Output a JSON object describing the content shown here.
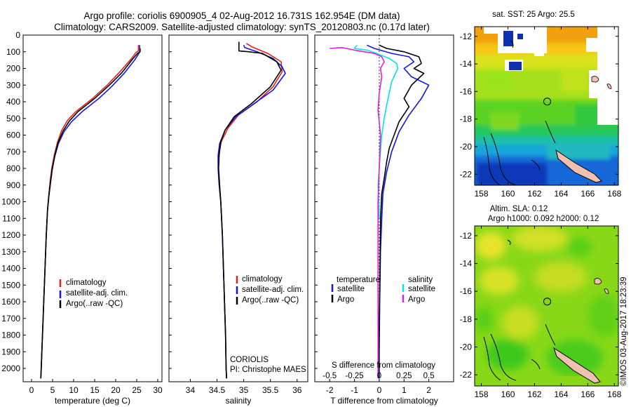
{
  "figure": {
    "title_line1": "Argo profile: coriolis 6900905_4 02-Aug-2012 16.731S 162.954E (DM data)",
    "title_line2": "Climatology: CARS2009. Satellite-adjusted climatology: synTS_20120803.nc (0.17d later)",
    "stamp": "©IMOS 03-Aug-2017 18:23:39",
    "colors": {
      "climatology": "#e8201c",
      "satellite": "#1515e0",
      "argo": "#000000",
      "sat_salinity": "#00e5e5",
      "argo_salinity": "#e020e0"
    }
  },
  "chart_data": [
    {
      "id": "temperature",
      "type": "line",
      "xlabel": "temperature (deg C)",
      "ylabel": "",
      "xlim": [
        -2,
        31
      ],
      "ylim": [
        2080,
        0
      ],
      "xticks": [
        0,
        5,
        10,
        15,
        20,
        25,
        30
      ],
      "yticks": [
        0,
        100,
        200,
        300,
        400,
        500,
        600,
        700,
        800,
        900,
        1000,
        1100,
        1200,
        1300,
        1400,
        1500,
        1600,
        1700,
        1800,
        1900,
        2000
      ],
      "legend": [
        "climatology",
        "satellite-adj. clim.",
        "Argo(..raw -QC)"
      ],
      "series": [
        {
          "name": "climatology",
          "color": "#e8201c",
          "points": [
            [
              25.4,
              60
            ],
            [
              25.4,
              95
            ],
            [
              24.8,
              105
            ],
            [
              23.8,
              140
            ],
            [
              21.0,
              220
            ],
            [
              18.0,
              300
            ],
            [
              14.5,
              380
            ],
            [
              10.5,
              460
            ],
            [
              8.6,
              510
            ],
            [
              7.2,
              570
            ],
            [
              6.2,
              640
            ],
            [
              5.4,
              720
            ],
            [
              4.8,
              800
            ],
            [
              4.4,
              880
            ],
            [
              4.1,
              960
            ],
            [
              3.8,
              1050
            ],
            [
              3.5,
              1200
            ],
            [
              3.2,
              1400
            ],
            [
              2.9,
              1600
            ],
            [
              2.6,
              1800
            ],
            [
              2.3,
              2000
            ],
            [
              2.2,
              2060
            ]
          ]
        },
        {
          "name": "satellite-adj. clim.",
          "color": "#1515e0",
          "points": [
            [
              25.7,
              60
            ],
            [
              25.7,
              100
            ],
            [
              25.4,
              115
            ],
            [
              24.5,
              150
            ],
            [
              22.0,
              230
            ],
            [
              19.0,
              310
            ],
            [
              16.0,
              380
            ],
            [
              12.0,
              460
            ],
            [
              9.5,
              520
            ],
            [
              7.7,
              580
            ],
            [
              6.4,
              650
            ],
            [
              5.5,
              730
            ],
            [
              4.9,
              810
            ],
            [
              4.5,
              890
            ],
            [
              4.1,
              970
            ],
            [
              3.8,
              1050
            ],
            [
              3.5,
              1200
            ],
            [
              3.2,
              1400
            ],
            [
              2.9,
              1600
            ],
            [
              2.6,
              1800
            ],
            [
              2.3,
              2000
            ],
            [
              2.2,
              2060
            ]
          ]
        },
        {
          "name": "Argo(..raw -QC)",
          "color": "#000000",
          "points": [
            [
              25.8,
              80
            ],
            [
              25.8,
              100
            ],
            [
              25.2,
              110
            ],
            [
              24.0,
              145
            ],
            [
              21.5,
              225
            ],
            [
              18.5,
              300
            ],
            [
              15.0,
              380
            ],
            [
              11.0,
              460
            ],
            [
              9.0,
              515
            ],
            [
              7.5,
              575
            ],
            [
              6.3,
              645
            ],
            [
              5.5,
              725
            ],
            [
              4.9,
              805
            ],
            [
              4.5,
              885
            ],
            [
              4.1,
              965
            ],
            [
              3.8,
              1050
            ],
            [
              3.5,
              1200
            ],
            [
              3.2,
              1400
            ],
            [
              2.9,
              1600
            ],
            [
              2.6,
              1800
            ],
            [
              2.3,
              2000
            ],
            [
              2.2,
              2060
            ]
          ]
        }
      ]
    },
    {
      "id": "salinity",
      "type": "line",
      "xlabel": "salinity",
      "xlim": [
        33.6,
        36.2
      ],
      "ylim": [
        2080,
        0
      ],
      "xticks": [
        34,
        34.5,
        35,
        35.5,
        36
      ],
      "legend": [
        "climatology",
        "satellite-adj. clim.",
        "Argo(..raw -QC)"
      ],
      "annotation_line1": "CORIOLIS",
      "annotation_line2": "PI: Christophe MAES",
      "series": [
        {
          "name": "climatology",
          "color": "#e8201c",
          "points": [
            [
              35.05,
              50
            ],
            [
              35.15,
              70
            ],
            [
              35.45,
              110
            ],
            [
              35.7,
              160
            ],
            [
              35.72,
              220
            ],
            [
              35.55,
              310
            ],
            [
              35.25,
              400
            ],
            [
              34.9,
              480
            ],
            [
              34.7,
              560
            ],
            [
              34.58,
              640
            ],
            [
              34.53,
              720
            ],
            [
              34.52,
              800
            ],
            [
              34.54,
              900
            ],
            [
              34.57,
              1000
            ],
            [
              34.6,
              1200
            ],
            [
              34.62,
              1400
            ],
            [
              34.64,
              1600
            ],
            [
              34.66,
              1800
            ],
            [
              34.67,
              2000
            ],
            [
              34.68,
              2060
            ]
          ]
        },
        {
          "name": "satellite-adj. clim.",
          "color": "#1515e0",
          "points": [
            [
              35.0,
              60
            ],
            [
              35.02,
              75
            ],
            [
              35.25,
              100
            ],
            [
              35.55,
              140
            ],
            [
              35.72,
              190
            ],
            [
              35.78,
              230
            ],
            [
              35.55,
              330
            ],
            [
              35.2,
              410
            ],
            [
              34.85,
              490
            ],
            [
              34.65,
              570
            ],
            [
              34.55,
              650
            ],
            [
              34.52,
              720
            ],
            [
              34.52,
              800
            ],
            [
              34.54,
              900
            ],
            [
              34.57,
              1000
            ],
            [
              34.6,
              1200
            ],
            [
              34.62,
              1400
            ],
            [
              34.64,
              1600
            ],
            [
              34.66,
              1800
            ],
            [
              34.67,
              2000
            ],
            [
              34.68,
              2060
            ]
          ]
        },
        {
          "name": "Argo(..raw -QC)",
          "color": "#000000",
          "points": [
            [
              34.91,
              40
            ],
            [
              34.91,
              95
            ],
            [
              35.1,
              100
            ],
            [
              35.35,
              110
            ],
            [
              35.62,
              160
            ],
            [
              35.7,
              210
            ],
            [
              35.5,
              310
            ],
            [
              35.15,
              410
            ],
            [
              34.82,
              490
            ],
            [
              34.65,
              570
            ],
            [
              34.57,
              640
            ],
            [
              34.54,
              720
            ],
            [
              34.53,
              800
            ],
            [
              34.55,
              900
            ],
            [
              34.57,
              1000
            ],
            [
              34.6,
              1200
            ],
            [
              34.62,
              1400
            ],
            [
              34.64,
              1600
            ],
            [
              34.66,
              1800
            ],
            [
              34.67,
              2000
            ],
            [
              34.68,
              2060
            ]
          ]
        }
      ]
    },
    {
      "id": "difference",
      "type": "line",
      "xlabel": "T difference from climatology",
      "xlabel_top": "S difference from climatology",
      "xlim_T": [
        -2.6,
        3.0
      ],
      "xticks_T": [
        -2,
        -1,
        0,
        1,
        2
      ],
      "xticks_S": [
        -0.5,
        -0.25,
        0,
        0.25,
        0.5
      ],
      "ylim": [
        2080,
        0
      ],
      "legend_header_T": "temperature",
      "legend_header_S": "salinity",
      "legend_T": [
        "satellite",
        "Argo"
      ],
      "legend_S": [
        "satellite",
        "Argo"
      ],
      "series": [
        {
          "name": "T satellite",
          "color": "#1515e0",
          "points": [
            [
              -0.5,
              60
            ],
            [
              -0.2,
              80
            ],
            [
              0.5,
              110
            ],
            [
              1.2,
              130
            ],
            [
              1.4,
              160
            ],
            [
              1.0,
              200
            ],
            [
              1.3,
              250
            ],
            [
              2.0,
              300
            ],
            [
              1.7,
              380
            ],
            [
              1.2,
              480
            ],
            [
              0.8,
              580
            ],
            [
              0.5,
              700
            ],
            [
              0.3,
              820
            ],
            [
              0.15,
              950
            ],
            [
              0.1,
              1100
            ],
            [
              0.05,
              1300
            ],
            [
              0.02,
              1600
            ],
            [
              0.0,
              1900
            ],
            [
              0.0,
              2060
            ]
          ]
        },
        {
          "name": "T Argo",
          "color": "#000000",
          "points": [
            [
              0.0,
              60
            ],
            [
              0.3,
              80
            ],
            [
              1.0,
              100
            ],
            [
              1.6,
              130
            ],
            [
              1.7,
              170
            ],
            [
              1.4,
              200
            ],
            [
              1.8,
              230
            ],
            [
              1.3,
              300
            ],
            [
              1.0,
              380
            ],
            [
              1.2,
              430
            ],
            [
              0.8,
              520
            ],
            [
              0.6,
              600
            ],
            [
              0.4,
              680
            ],
            [
              0.3,
              760
            ],
            [
              0.2,
              860
            ],
            [
              0.1,
              950
            ],
            [
              0.05,
              1100
            ],
            [
              0.03,
              1400
            ],
            [
              0.0,
              1700
            ],
            [
              -0.02,
              2060
            ]
          ]
        },
        {
          "name": "S satellite",
          "color": "#00e5e5",
          "points": [
            [
              -0.9,
              60
            ],
            [
              -1.0,
              80
            ],
            [
              -0.5,
              90
            ],
            [
              -0.1,
              110
            ],
            [
              0.4,
              140
            ],
            [
              0.7,
              170
            ],
            [
              0.75,
              200
            ],
            [
              0.5,
              280
            ],
            [
              0.4,
              350
            ],
            [
              0.3,
              420
            ],
            [
              0.2,
              500
            ],
            [
              0.1,
              600
            ],
            [
              0.05,
              700
            ],
            [
              0.0,
              800
            ],
            [
              -0.05,
              900
            ],
            [
              -0.02,
              1000
            ],
            [
              0.0,
              1100
            ]
          ]
        },
        {
          "name": "S Argo",
          "color": "#e020e0",
          "points": [
            [
              -2.0,
              80
            ],
            [
              -1.5,
              75
            ],
            [
              -1.0,
              90
            ],
            [
              -0.6,
              100
            ],
            [
              -0.2,
              110
            ],
            [
              0.1,
              130
            ],
            [
              0.2,
              160
            ],
            [
              0.05,
              200
            ],
            [
              0.1,
              250
            ],
            [
              0.05,
              300
            ],
            [
              0.0,
              350
            ],
            [
              -0.05,
              450
            ],
            [
              0.0,
              520
            ],
            [
              0.05,
              600
            ],
            [
              0.0,
              800
            ],
            [
              -0.05,
              1000
            ],
            [
              -0.05,
              1500
            ],
            [
              -0.05,
              2000
            ],
            [
              -0.05,
              2060
            ]
          ]
        }
      ]
    },
    {
      "id": "sst_map",
      "type": "heatmap",
      "title": "sat. SST: 25 Argo: 25.5",
      "xticks": [
        158,
        160,
        162,
        164,
        166,
        168
      ],
      "yticks": [
        -12,
        -14,
        -16,
        -18,
        -20,
        -22
      ],
      "xlim": [
        157.5,
        168.3
      ],
      "ylim": [
        -22.8,
        -11.3
      ],
      "argo_position": [
        162.954,
        -16.731
      ]
    },
    {
      "id": "sla_map",
      "type": "heatmap",
      "title_line1": "Altim. SLA: 0.12",
      "title_line2": "Argo h1000: 0.092 h2000: 0.12",
      "xticks": [
        158,
        160,
        162,
        164,
        166,
        168
      ],
      "yticks": [
        -12,
        -14,
        -16,
        -18,
        -20,
        -22
      ],
      "xlim": [
        157.5,
        168.3
      ],
      "ylim": [
        -22.8,
        -11.3
      ],
      "argo_position": [
        162.954,
        -16.731
      ]
    }
  ]
}
